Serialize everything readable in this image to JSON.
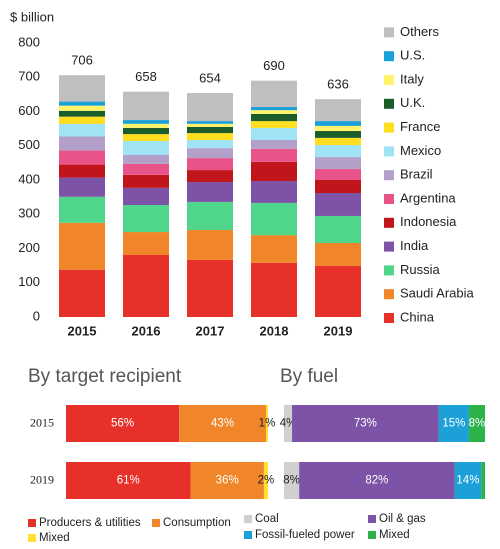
{
  "chart_data": [
    {
      "type": "stacked_bar",
      "ylabel": "$ billion",
      "legend": "right",
      "categories": [
        "2015",
        "2016",
        "2017",
        "2018",
        "2019"
      ],
      "totals": [
        706,
        658,
        654,
        690,
        636
      ],
      "ylim": [
        0,
        800
      ],
      "yticks": [
        0,
        100,
        200,
        300,
        400,
        500,
        600,
        700,
        800
      ],
      "series": [
        {
          "name": "China",
          "color": "#e8302a",
          "values": [
            138,
            181,
            167,
            158,
            149
          ]
        },
        {
          "name": "Saudi Arabia",
          "color": "#f08529",
          "values": [
            137,
            67,
            87,
            81,
            67
          ]
        },
        {
          "name": "Russia",
          "color": "#4fd68b",
          "values": [
            76,
            79,
            82,
            94,
            79
          ]
        },
        {
          "name": "India",
          "color": "#7c53a6",
          "values": [
            56,
            50,
            58,
            64,
            67
          ]
        },
        {
          "name": "Indonesia",
          "color": "#c0161b",
          "values": [
            38,
            38,
            35,
            56,
            38
          ]
        },
        {
          "name": "Argentina",
          "color": "#e8538a",
          "values": [
            41,
            32,
            35,
            38,
            32
          ]
        },
        {
          "name": "Brazil",
          "color": "#b3a0c9",
          "values": [
            41,
            26,
            29,
            26,
            35
          ]
        },
        {
          "name": "Mexico",
          "color": "#9fe3f5",
          "values": [
            37,
            41,
            24,
            35,
            35
          ]
        },
        {
          "name": "France",
          "color": "#ffdd1f",
          "values": [
            21,
            20,
            20,
            20,
            21
          ]
        },
        {
          "name": "U.K.",
          "color": "#1a5c2a",
          "values": [
            17,
            18,
            18,
            21,
            20
          ]
        },
        {
          "name": "Italy",
          "color": "#fff36b",
          "values": [
            15,
            12,
            9,
            11,
            15
          ]
        },
        {
          "name": "U.S.",
          "color": "#1ba1d8",
          "values": [
            12,
            11,
            8,
            9,
            14
          ]
        },
        {
          "name": "Others",
          "color": "#bfbfbf",
          "values": [
            77,
            83,
            82,
            77,
            64
          ]
        }
      ]
    },
    {
      "type": "stacked_hbar",
      "title": "By target recipient",
      "categories": [
        "2015",
        "2019"
      ],
      "series": [
        {
          "name": "Producers & utilities",
          "color": "#e8302a",
          "values": [
            56,
            61
          ],
          "value_labels": [
            "56%",
            "61%"
          ]
        },
        {
          "name": "Consumption",
          "color": "#f08529",
          "values": [
            43,
            36
          ],
          "value_labels": [
            "43%",
            "36%"
          ]
        },
        {
          "name": "Mixed",
          "color": "#ffe033",
          "values": [
            1,
            2
          ],
          "value_labels": [
            "1%",
            "2%"
          ]
        }
      ]
    },
    {
      "type": "stacked_hbar",
      "title": "By fuel",
      "categories": [
        "2015",
        "2019"
      ],
      "series": [
        {
          "name": "Coal",
          "color": "#d0d0d0",
          "values": [
            4,
            8
          ],
          "value_labels": [
            "4%",
            "8%"
          ]
        },
        {
          "name": "Oil & gas",
          "color": "#7c53a6",
          "values": [
            73,
            82
          ],
          "value_labels": [
            "73%",
            "82%"
          ]
        },
        {
          "name": "Fossil-fueled power",
          "color": "#1ba1d8",
          "values": [
            15,
            14
          ],
          "value_labels": [
            "15%",
            "14%"
          ]
        },
        {
          "name": "Mixed",
          "color": "#2bb34a",
          "values": [
            8,
            2
          ],
          "value_labels": [
            "8%",
            null
          ]
        }
      ]
    }
  ]
}
